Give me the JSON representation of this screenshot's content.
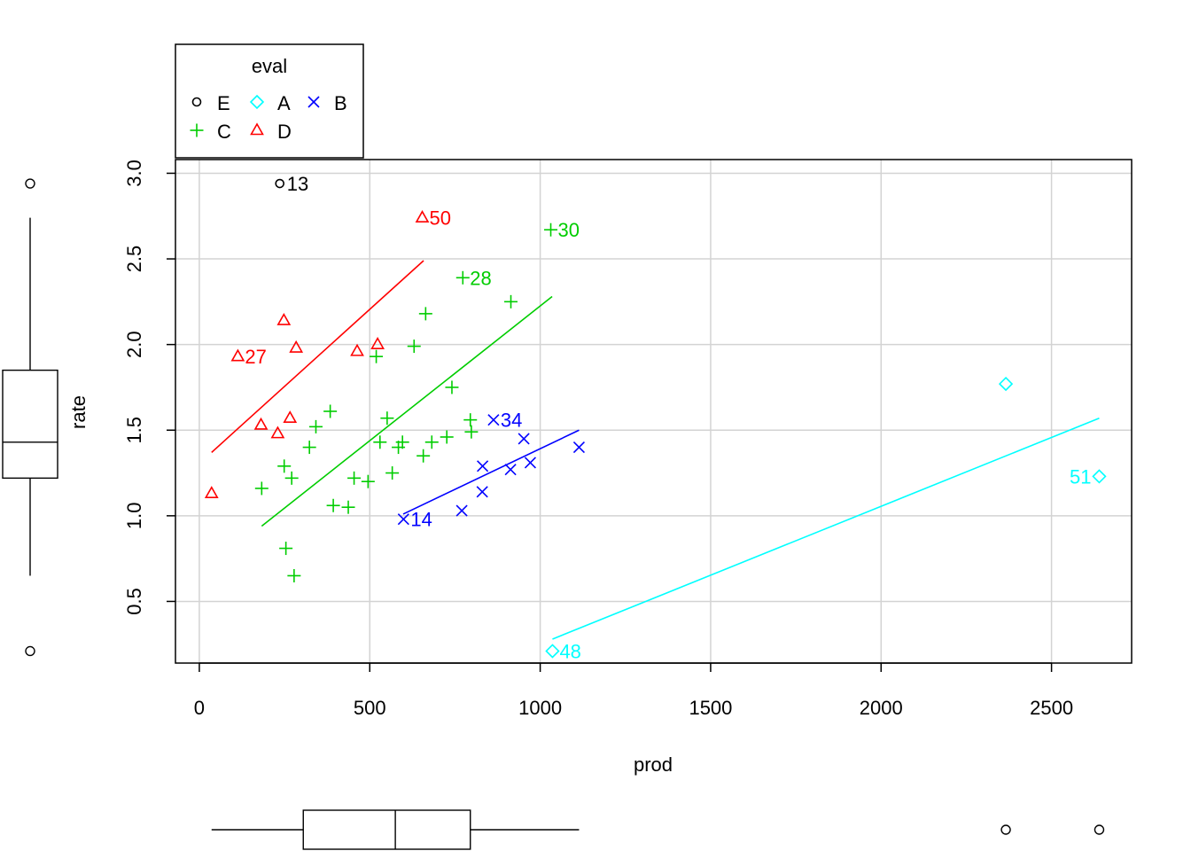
{
  "chart_data": {
    "type": "scatter",
    "xlabel": "prod",
    "ylabel": "rate",
    "xlim": [
      -70,
      2735
    ],
    "ylim": [
      0.14,
      3.08
    ],
    "x_ticks": [
      0,
      500,
      1000,
      1500,
      2000,
      2500
    ],
    "x_tick_labels": [
      "0",
      "500",
      "1000",
      "1500",
      "2000",
      "2500"
    ],
    "y_ticks": [
      0.5,
      1.0,
      1.5,
      2.0,
      2.5,
      3.0
    ],
    "y_tick_labels": [
      "0.5",
      "1.0",
      "1.5",
      "2.0",
      "2.5",
      "3.0"
    ],
    "grid": true,
    "legend": {
      "title": "eval",
      "position": "top-left",
      "entries": [
        {
          "name": "E",
          "color": "#000000",
          "marker": "circle"
        },
        {
          "name": "C",
          "color": "#00cd00",
          "marker": "plus"
        },
        {
          "name": "A",
          "color": "#00ffff",
          "marker": "diamond"
        },
        {
          "name": "D",
          "color": "#ff0000",
          "marker": "triangle"
        },
        {
          "name": "B",
          "color": "#0000ff",
          "marker": "cross"
        }
      ]
    },
    "series": [
      {
        "name": "E",
        "color": "#000000",
        "marker": "circle",
        "points": [
          {
            "x": 236,
            "y": 2.94,
            "label": "13"
          }
        ]
      },
      {
        "name": "D",
        "color": "#ff0000",
        "marker": "triangle",
        "points": [
          {
            "x": 36,
            "y": 1.13
          },
          {
            "x": 113,
            "y": 1.93,
            "label": "27"
          },
          {
            "x": 181,
            "y": 1.53
          },
          {
            "x": 230,
            "y": 1.48
          },
          {
            "x": 248,
            "y": 2.14
          },
          {
            "x": 266,
            "y": 1.57
          },
          {
            "x": 284,
            "y": 1.98
          },
          {
            "x": 463,
            "y": 1.96
          },
          {
            "x": 523,
            "y": 2.0
          },
          {
            "x": 654,
            "y": 2.74,
            "label": "50"
          }
        ],
        "fit_line": [
          [
            36,
            1.37
          ],
          [
            658,
            2.49
          ]
        ]
      },
      {
        "name": "C",
        "color": "#00cd00",
        "marker": "plus",
        "points": [
          {
            "x": 183,
            "y": 1.16
          },
          {
            "x": 249,
            "y": 1.29
          },
          {
            "x": 254,
            "y": 0.81
          },
          {
            "x": 271,
            "y": 1.22
          },
          {
            "x": 278,
            "y": 0.65
          },
          {
            "x": 323,
            "y": 1.4
          },
          {
            "x": 342,
            "y": 1.52
          },
          {
            "x": 384,
            "y": 1.61
          },
          {
            "x": 393,
            "y": 1.06
          },
          {
            "x": 437,
            "y": 1.05
          },
          {
            "x": 454,
            "y": 1.22
          },
          {
            "x": 495,
            "y": 1.2
          },
          {
            "x": 519,
            "y": 1.93
          },
          {
            "x": 530,
            "y": 1.43
          },
          {
            "x": 551,
            "y": 1.57
          },
          {
            "x": 566,
            "y": 1.25
          },
          {
            "x": 584,
            "y": 1.4
          },
          {
            "x": 596,
            "y": 1.43
          },
          {
            "x": 630,
            "y": 1.99
          },
          {
            "x": 657,
            "y": 1.35
          },
          {
            "x": 664,
            "y": 2.18
          },
          {
            "x": 682,
            "y": 1.43
          },
          {
            "x": 726,
            "y": 1.46
          },
          {
            "x": 741,
            "y": 1.75
          },
          {
            "x": 773,
            "y": 2.39,
            "label": "28"
          },
          {
            "x": 795,
            "y": 1.56
          },
          {
            "x": 798,
            "y": 1.49
          },
          {
            "x": 914,
            "y": 2.25
          },
          {
            "x": 1031,
            "y": 2.67,
            "label": "30"
          }
        ],
        "fit_line": [
          [
            183,
            0.94
          ],
          [
            1035,
            2.28
          ]
        ]
      },
      {
        "name": "B",
        "color": "#0000ff",
        "marker": "cross",
        "points": [
          {
            "x": 599,
            "y": 0.98,
            "label": "14"
          },
          {
            "x": 770,
            "y": 1.03
          },
          {
            "x": 830,
            "y": 1.14
          },
          {
            "x": 831,
            "y": 1.29
          },
          {
            "x": 863,
            "y": 1.56,
            "label": "34"
          },
          {
            "x": 913,
            "y": 1.27
          },
          {
            "x": 952,
            "y": 1.45
          },
          {
            "x": 971,
            "y": 1.31
          },
          {
            "x": 1114,
            "y": 1.4
          }
        ],
        "fit_line": [
          [
            598,
            1.01
          ],
          [
            1114,
            1.5
          ]
        ]
      },
      {
        "name": "A",
        "color": "#00ffff",
        "marker": "diamond",
        "points": [
          {
            "x": 1036,
            "y": 0.21,
            "label": "48"
          },
          {
            "x": 2366,
            "y": 1.77
          },
          {
            "x": 2640,
            "y": 1.23,
            "label": "51"
          }
        ],
        "fit_line": [
          [
            1036,
            0.28
          ],
          [
            2640,
            1.57
          ]
        ]
      }
    ],
    "marginal_boxplot_x": {
      "whisker_low": 36,
      "q1": 305,
      "median": 575,
      "q3": 795,
      "whisker_high": 1114,
      "outliers": [
        2366,
        2640
      ]
    },
    "marginal_boxplot_y": {
      "whisker_low": 0.65,
      "q1": 1.22,
      "median": 1.43,
      "q3": 1.85,
      "whisker_high": 2.74,
      "outliers": [
        0.21,
        2.94
      ]
    }
  }
}
